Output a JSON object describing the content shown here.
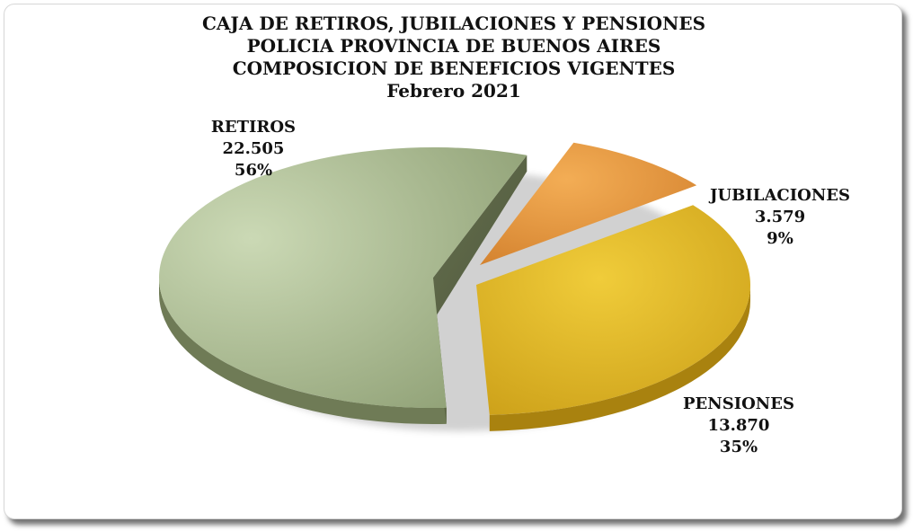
{
  "chart": {
    "title_lines": [
      "CAJA DE RETIROS, JUBILACIONES Y PENSIONES",
      "POLICIA PROVINCIA DE BUENOS AIRES",
      "COMPOSICION DE BENEFICIOS VIGENTES",
      "Febrero 2021"
    ]
  },
  "chart_data": {
    "type": "pie",
    "categories": [
      "RETIROS",
      "JUBILACIONES",
      "PENSIONES"
    ],
    "values": [
      22505,
      3579,
      13870
    ],
    "value_labels": [
      "22.505",
      "3.579",
      "13.870"
    ],
    "percent_labels": [
      "56%",
      "9%",
      "35%"
    ],
    "colors": [
      "#a9ba8e",
      "#e89a45",
      "#dcb424"
    ]
  }
}
